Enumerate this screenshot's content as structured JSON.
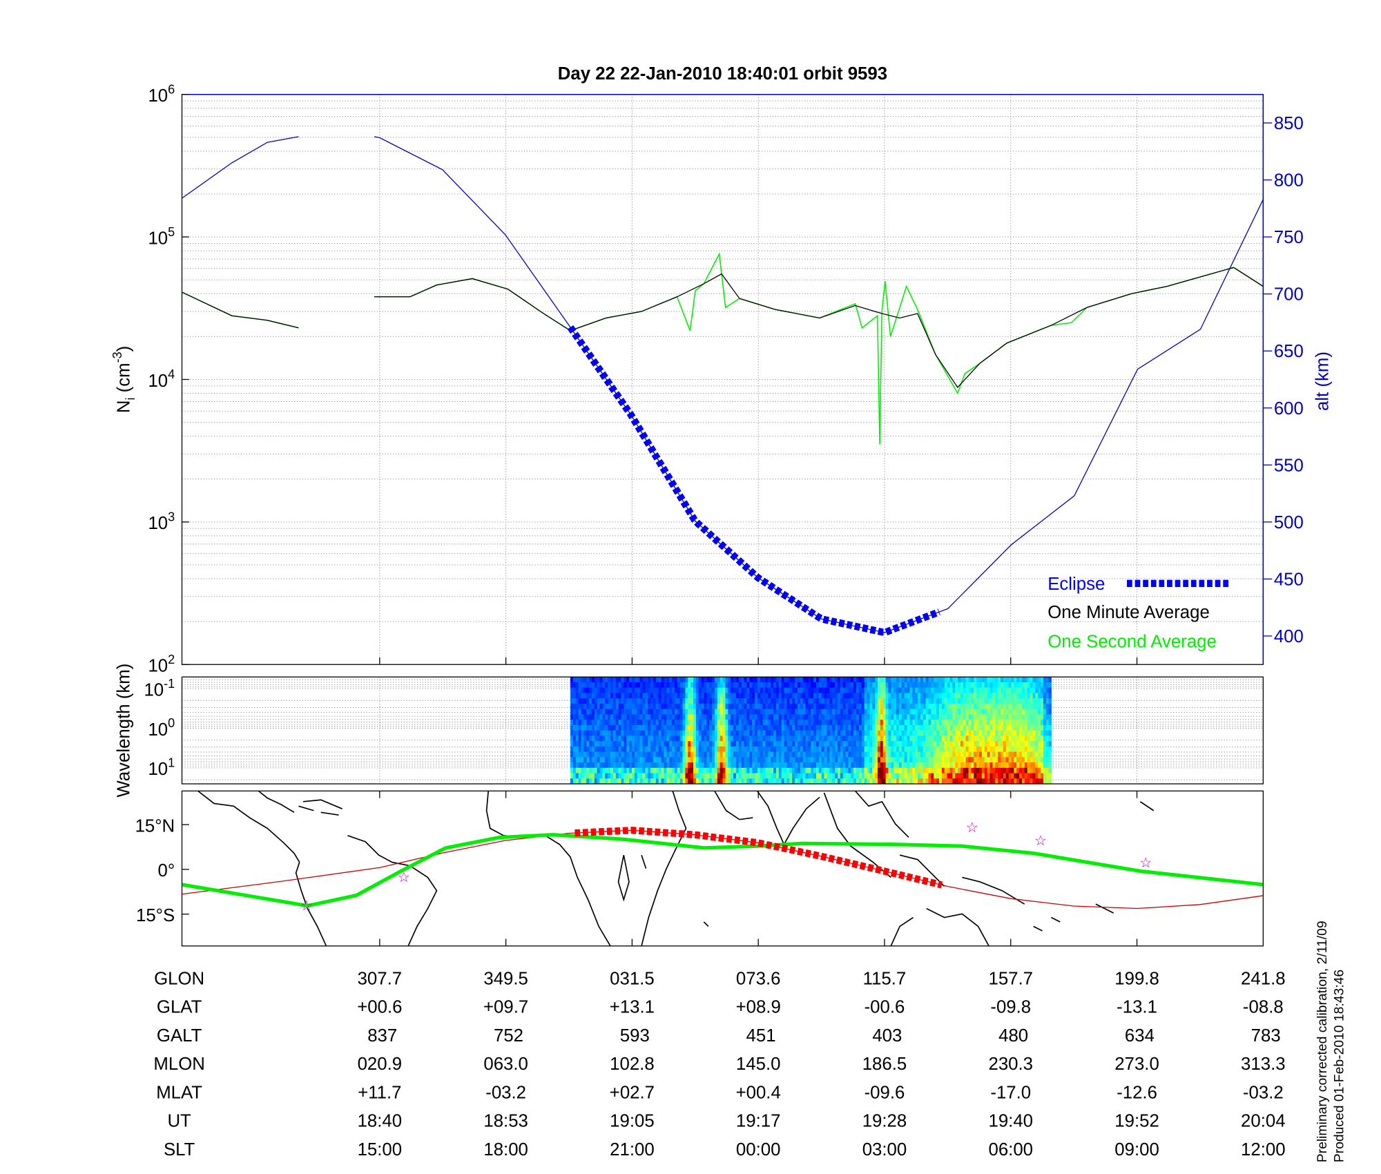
{
  "title": "Day 22  22-Jan-2010 18:40:01   orbit 9593",
  "footnote": {
    "line1": "Preliminary corrected calibration, 2/11/09",
    "line2": "Produced 01-Feb-2010 18:43:46"
  },
  "colors": {
    "altitude": "#0000cc",
    "eclipse": "#0000ff",
    "one_minute": "#000000",
    "one_second": "#00ee00",
    "track": "#cc0000",
    "eclipse_track": "#ff0000",
    "dip_equator": "#00ee00",
    "stars": "#cc00cc",
    "grid": "#999999"
  },
  "chart_data": [
    {
      "type": "line",
      "panel": "density",
      "ylabel": "N",
      "ylabel_sub": "i",
      "ylabel_unit": "(cm",
      "ylabel_unit_exp": "-3",
      "ylabel_close": ")",
      "yscale": "log",
      "ylim": [
        100,
        1000000
      ],
      "yticks": [
        {
          "base": "10",
          "exp": "2"
        },
        {
          "base": "10",
          "exp": "3"
        },
        {
          "base": "10",
          "exp": "4"
        },
        {
          "base": "10",
          "exp": "5"
        },
        {
          "base": "10",
          "exp": "6"
        }
      ],
      "y2label": "alt (km)",
      "y2lim": [
        375,
        875
      ],
      "y2ticks": [
        "400",
        "450",
        "500",
        "550",
        "600",
        "650",
        "700",
        "750",
        "800",
        "850"
      ],
      "xlim": [
        "18:21:25",
        "20:03:02"
      ],
      "grid": true,
      "legend_placement": "bottom-right",
      "legend": {
        "eclipse": "Eclipse",
        "one_minute": "One Minute Average",
        "one_second": "One Second Average"
      },
      "altitude": {
        "segments": [
          [
            [
              "18:21:25",
              784
            ],
            [
              "18:26:06",
              815
            ],
            [
              "18:29:27",
              833
            ],
            [
              "18:32:23",
              838
            ]
          ],
          [
            [
              "18:39:30",
              838
            ],
            [
              "18:40:00",
              837
            ],
            [
              "18:45:54",
              809
            ],
            [
              "18:51:48",
              752
            ],
            [
              "18:57:45",
              673
            ],
            [
              "19:03:41",
              593
            ],
            [
              "19:09:38",
              501
            ],
            [
              "19:15:34",
              451
            ],
            [
              "19:21:30",
              415
            ],
            [
              "19:27:27",
              403
            ],
            [
              "19:33:24",
              424
            ],
            [
              "19:39:21",
              480
            ],
            [
              "19:45:17",
              523
            ],
            [
              "19:51:14",
              634
            ],
            [
              "19:57:08",
              669
            ],
            [
              "20:03:02",
              783
            ]
          ]
        ]
      },
      "eclipse": {
        "start": "18:57:55",
        "end": "19:32:48"
      },
      "one_minute_average": {
        "segments": [
          [
            [
              "18:21:25",
              41000
            ],
            [
              "18:26:06",
              28000
            ],
            [
              "18:29:27",
              26000
            ],
            [
              "18:32:23",
              23000
            ]
          ],
          [
            [
              "18:39:30",
              38000
            ],
            [
              "18:42:51",
              38000
            ],
            [
              "18:45:21",
              46000
            ],
            [
              "18:48:42",
              51000
            ],
            [
              "18:52:03",
              43000
            ],
            [
              "18:55:24",
              29000
            ],
            [
              "18:57:55",
              22000
            ],
            [
              "19:01:16",
              27000
            ],
            [
              "19:04:36",
              30000
            ],
            [
              "19:07:57",
              38000
            ],
            [
              "19:10:28",
              47000
            ],
            [
              "19:12:08",
              55000
            ],
            [
              "19:13:49",
              37000
            ],
            [
              "19:17:10",
              31000
            ],
            [
              "19:21:21",
              27000
            ],
            [
              "19:24:42",
              33000
            ],
            [
              "19:27:12",
              29000
            ],
            [
              "19:28:53",
              27000
            ],
            [
              "19:30:33",
              29000
            ],
            [
              "19:32:14",
              15000
            ],
            [
              "19:34:19",
              8800
            ],
            [
              "19:36:25",
              13000
            ],
            [
              "19:38:56",
              18000
            ],
            [
              "19:43:07",
              24000
            ],
            [
              "19:46:28",
              32000
            ],
            [
              "19:50:39",
              40000
            ],
            [
              "19:54:00",
              45000
            ],
            [
              "19:57:21",
              53000
            ],
            [
              "20:00:16",
              61000
            ],
            [
              "20:03:02",
              45000
            ]
          ]
        ]
      },
      "one_second_average": {
        "segments": [
          [
            [
              "18:21:25",
              41000
            ],
            [
              "18:26:06",
              28000
            ],
            [
              "18:29:27",
              26000
            ],
            [
              "18:32:23",
              23000
            ]
          ],
          [
            [
              "18:39:30",
              38000
            ],
            [
              "18:42:51",
              38000
            ],
            [
              "18:45:21",
              46000
            ],
            [
              "18:48:42",
              51000
            ],
            [
              "18:52:03",
              43000
            ],
            [
              "18:55:24",
              29000
            ],
            [
              "18:57:55",
              22000
            ],
            [
              "19:01:16",
              27000
            ],
            [
              "19:04:36",
              30000
            ],
            [
              "19:07:57",
              38000
            ],
            [
              "19:09:10",
              22000
            ],
            [
              "19:09:40",
              42000
            ],
            [
              "19:10:28",
              47000
            ],
            [
              "19:11:55",
              76000
            ],
            [
              "19:12:08",
              55000
            ],
            [
              "19:12:30",
              32000
            ],
            [
              "19:13:49",
              37000
            ],
            [
              "19:17:10",
              31000
            ],
            [
              "19:21:21",
              27000
            ],
            [
              "19:24:42",
              34000
            ],
            [
              "19:25:20",
              23000
            ],
            [
              "19:26:47",
              28000
            ],
            [
              "19:27:00",
              3500
            ],
            [
              "19:27:12",
              30000
            ],
            [
              "19:27:30",
              49000
            ],
            [
              "19:28:00",
              20000
            ],
            [
              "19:28:53",
              32000
            ],
            [
              "19:29:30",
              45000
            ],
            [
              "19:30:33",
              31000
            ],
            [
              "19:32:14",
              15000
            ],
            [
              "19:34:19",
              8000
            ],
            [
              "19:35:00",
              11000
            ],
            [
              "19:36:25",
              13000
            ],
            [
              "19:38:56",
              18000
            ],
            [
              "19:43:07",
              24000
            ],
            [
              "19:45:00",
              25000
            ],
            [
              "19:46:28",
              32000
            ],
            [
              "19:50:39",
              40000
            ],
            [
              "19:54:00",
              45000
            ],
            [
              "19:57:21",
              53000
            ],
            [
              "20:00:16",
              61000
            ],
            [
              "20:03:02",
              45000
            ]
          ]
        ]
      }
    },
    {
      "type": "heatmap",
      "panel": "spectrogram",
      "ylabel": "Wavelength (km)",
      "yscale": "log",
      "yreversed": true,
      "ylim": [
        0.05,
        25
      ],
      "yticks": [
        {
          "base": "10",
          "exp": "-1"
        },
        {
          "base": "10",
          "exp": "0"
        },
        {
          "base": "10",
          "exp": "1"
        }
      ],
      "xlim": [
        "18:21:25",
        "20:03:02"
      ],
      "data_start": "18:57:55",
      "data_end": "19:43:07",
      "colormap": "jet",
      "bursts": [
        "19:09:05",
        "19:12:00",
        "19:27:00",
        "19:35:00",
        "19:40:00"
      ]
    },
    {
      "type": "line",
      "panel": "map",
      "xlim": [
        241.8,
        601.8
      ],
      "ylim": [
        -26,
        26
      ],
      "yticks": [
        "15°N",
        "0°",
        "15°S"
      ],
      "satellite_track": [
        [
          241.8,
          -8.3
        ],
        [
          275.0,
          -4.0
        ],
        [
          307.7,
          0.6
        ],
        [
          328.6,
          5.5
        ],
        [
          349.5,
          9.7
        ],
        [
          10.6,
          12.1
        ],
        [
          31.5,
          13.1
        ],
        [
          52.5,
          11.6
        ],
        [
          73.6,
          8.9
        ],
        [
          94.6,
          4.4
        ],
        [
          115.7,
          -0.6
        ],
        [
          136.7,
          -5.7
        ],
        [
          157.7,
          -9.8
        ],
        [
          178.7,
          -12.3
        ],
        [
          199.8,
          -13.1
        ],
        [
          220.8,
          -11.8
        ],
        [
          241.8,
          -8.8
        ]
      ],
      "eclipse_lon_range": [
        12.6,
        134.8
      ],
      "dip_equator": [
        [
          241.8,
          -5.1
        ],
        [
          283.6,
          -12.2
        ],
        [
          299.9,
          -8.7
        ],
        [
          314.7,
          -0.6
        ],
        [
          329.6,
          7.2
        ],
        [
          347.4,
          10.7
        ],
        [
          5.2,
          11.6
        ],
        [
          28.9,
          10.1
        ],
        [
          55.6,
          7.2
        ],
        [
          73.4,
          7.8
        ],
        [
          88.2,
          8.7
        ],
        [
          117.9,
          8.4
        ],
        [
          141.6,
          7.8
        ],
        [
          165.3,
          5.4
        ],
        [
          200.9,
          -0.6
        ],
        [
          241.8,
          -5.1
        ]
      ],
      "stars": [
        [
          283.3,
          -11.9
        ],
        [
          315.7,
          -2.4
        ],
        [
          144.9,
          14.3
        ],
        [
          167.7,
          9.9
        ],
        [
          202.7,
          2.4
        ]
      ]
    }
  ],
  "table": {
    "columns": [
      "307.7",
      "349.5",
      "031.5",
      "073.6",
      "115.7",
      "157.7",
      "199.8",
      "241.8"
    ],
    "rows": [
      {
        "label": "GLON",
        "values": [
          "307.7",
          "349.5",
          "031.5",
          "073.6",
          "115.7",
          "157.7",
          "199.8",
          "241.8"
        ]
      },
      {
        "label": "GLAT",
        "values": [
          "+00.6",
          "+09.7",
          "+13.1",
          "+08.9",
          "-00.6",
          "-09.8",
          "-13.1",
          "-08.8"
        ]
      },
      {
        "label": "GALT",
        "values": [
          "837",
          "752",
          "593",
          "451",
          "403",
          "480",
          "634",
          "783"
        ]
      },
      {
        "label": "MLON",
        "values": [
          "020.9",
          "063.0",
          "102.8",
          "145.0",
          "186.5",
          "230.3",
          "273.0",
          "313.3"
        ]
      },
      {
        "label": "MLAT",
        "values": [
          "+11.7",
          "-03.2",
          "+02.7",
          "+00.4",
          "-09.6",
          "-17.0",
          "-12.6",
          "-03.2"
        ]
      },
      {
        "label": "UT",
        "values": [
          "18:40",
          "18:53",
          "19:05",
          "19:17",
          "19:28",
          "19:40",
          "19:52",
          "20:04"
        ]
      },
      {
        "label": "SLT",
        "values": [
          "15:00",
          "18:00",
          "21:00",
          "00:00",
          "03:00",
          "06:00",
          "09:00",
          "12:00"
        ]
      }
    ]
  }
}
